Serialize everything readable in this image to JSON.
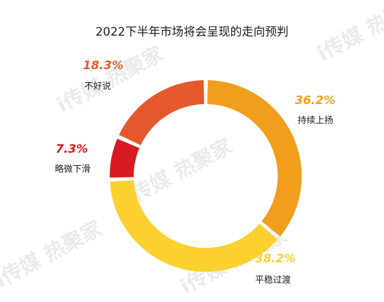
{
  "watermark": "i传媒 热聚家",
  "chart_data": {
    "type": "pie",
    "donut": true,
    "title": "2022下半年市场将会呈现的走向预判",
    "slices": [
      {
        "label": "持续上扬",
        "value_label": "36.2%",
        "value": 36.2,
        "color": "#F19E1D"
      },
      {
        "label": "平稳过渡",
        "value_label": "38.2%",
        "value": 38.2,
        "color": "#FBD02F"
      },
      {
        "label": "略微下滑",
        "value_label": "7.3%",
        "value": 7.3,
        "color": "#D71A22"
      },
      {
        "label": "不好说",
        "value_label": "18.3%",
        "value": 18.3,
        "color": "#E5582C"
      }
    ]
  }
}
